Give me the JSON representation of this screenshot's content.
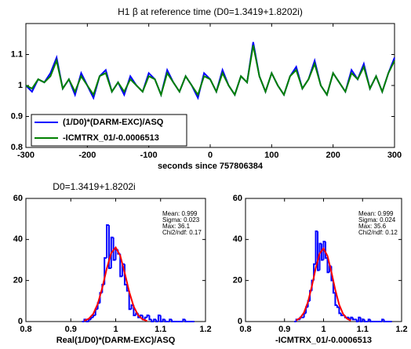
{
  "chart_data": [
    {
      "type": "line",
      "title": "H1 β at reference time (D0=1.3419+1.8202i)",
      "x_label": "seconds since 757806384",
      "x": [
        -300,
        -290,
        -280,
        -270,
        -260,
        -250,
        -240,
        -230,
        -220,
        -210,
        -200,
        -190,
        -180,
        -170,
        -160,
        -150,
        -140,
        -130,
        -120,
        -110,
        -100,
        -90,
        -80,
        -70,
        -60,
        -50,
        -40,
        -30,
        -20,
        -10,
        0,
        10,
        20,
        30,
        40,
        50,
        60,
        70,
        80,
        90,
        100,
        110,
        120,
        130,
        140,
        150,
        160,
        170,
        180,
        190,
        200,
        210,
        220,
        230,
        240,
        250,
        260,
        270,
        280,
        290,
        300
      ],
      "series": [
        {
          "name": "(1/D0)*(DARM-EXC)/ASQ",
          "color": "#0000ff",
          "values": [
            1.0,
            0.98,
            1.02,
            1.01,
            1.04,
            1.09,
            0.99,
            1.02,
            0.97,
            1.04,
            1.0,
            0.96,
            1.03,
            1.05,
            0.98,
            1.01,
            0.97,
            1.03,
            1.0,
            0.98,
            1.04,
            1.02,
            0.97,
            1.05,
            1.01,
            0.98,
            1.03,
            1.0,
            0.96,
            1.04,
            1.02,
            0.98,
            1.05,
            1.0,
            0.97,
            1.03,
            1.01,
            1.14,
            1.03,
            0.98,
            1.04,
            1.0,
            0.97,
            1.03,
            1.06,
            0.99,
            1.02,
            1.08,
            1.0,
            0.97,
            1.04,
            1.01,
            0.98,
            1.05,
            1.02,
            1.07,
            0.99,
            1.03,
            0.98,
            1.04,
            1.09
          ]
        },
        {
          "name": "-ICMTRX_01/-0.0006513",
          "color": "#008000",
          "values": [
            1.0,
            0.99,
            1.02,
            1.01,
            1.03,
            1.08,
            0.99,
            1.02,
            0.98,
            1.03,
            1.0,
            0.97,
            1.03,
            1.04,
            0.98,
            1.01,
            0.98,
            1.02,
            1.0,
            0.98,
            1.03,
            1.02,
            0.97,
            1.04,
            1.01,
            0.98,
            1.03,
            1.0,
            0.97,
            1.03,
            1.02,
            0.98,
            1.04,
            1.0,
            0.97,
            1.03,
            1.01,
            1.13,
            1.03,
            0.98,
            1.04,
            1.0,
            0.97,
            1.03,
            1.05,
            0.99,
            1.02,
            1.07,
            1.0,
            0.97,
            1.04,
            1.01,
            0.98,
            1.04,
            1.02,
            1.06,
            0.99,
            1.03,
            0.98,
            1.04,
            1.08
          ]
        }
      ],
      "xlim": [
        -300,
        300
      ],
      "xticks": [
        -300,
        -200,
        -100,
        0,
        100,
        200,
        300
      ],
      "ylim": [
        0.8,
        1.2
      ],
      "yticks": [
        0.8,
        0.9,
        1,
        1.1
      ],
      "legend": "lower left"
    },
    {
      "type": "histogram",
      "title": "D0=1.3419+1.8202i",
      "x_label": "Real(1/D0)*(DARM-EXC)/ASQ",
      "color": "#0000ff",
      "bins": [
        0.925,
        0.93,
        0.935,
        0.94,
        0.945,
        0.95,
        0.955,
        0.96,
        0.965,
        0.97,
        0.975,
        0.98,
        0.985,
        0.99,
        0.995,
        1.0,
        1.005,
        1.01,
        1.015,
        1.02,
        1.025,
        1.03,
        1.035,
        1.04,
        1.045,
        1.05,
        1.055,
        1.06,
        1.065,
        1.07,
        1.075,
        1.08,
        1.085,
        1.09,
        1.095,
        1.1,
        1.105,
        1.11,
        1.115,
        1.12,
        1.125,
        1.13,
        1.135,
        1.14,
        1.145,
        1.15,
        1.155,
        1.16,
        1.165,
        1.17,
        1.175
      ],
      "values": [
        0,
        1,
        0,
        1,
        2,
        3,
        6,
        9,
        14,
        18,
        31,
        47,
        26,
        41,
        30,
        35,
        33,
        22,
        28,
        18,
        15,
        6,
        8,
        3,
        4,
        2,
        3,
        1,
        2,
        3,
        1,
        0,
        1,
        0,
        3,
        0,
        1,
        0,
        0,
        1,
        0,
        0,
        0,
        0,
        0,
        1,
        0,
        0,
        0,
        0
      ],
      "fit": {
        "color": "#ff0000",
        "x": [
          0.93,
          0.94,
          0.95,
          0.96,
          0.97,
          0.98,
          0.99,
          1.0,
          1.01,
          1.02,
          1.03,
          1.04,
          1.05,
          1.06,
          1.07
        ],
        "y": [
          0.4,
          1.35,
          3.73,
          8.57,
          16.3,
          25.7,
          33.4,
          36.1,
          32.2,
          23.8,
          14.6,
          7.37,
          3.09,
          1.07,
          0.31
        ]
      },
      "annotations": [
        "Mean: 0.999",
        "Sigma: 0.023",
        "Max: 36.1",
        "Chi2/ndf: 0.17"
      ],
      "xlim": [
        0.8,
        1.2
      ],
      "xticks": [
        0.8,
        0.9,
        1,
        1.1,
        1.2
      ],
      "ylim": [
        0,
        60
      ],
      "yticks": [
        0,
        20,
        40,
        60
      ]
    },
    {
      "type": "histogram",
      "x_label": "-ICMTRX_01/-0.0006513",
      "color": "#0000ff",
      "bins": [
        0.925,
        0.93,
        0.935,
        0.94,
        0.945,
        0.95,
        0.955,
        0.96,
        0.965,
        0.97,
        0.975,
        0.98,
        0.985,
        0.99,
        0.995,
        1.0,
        1.005,
        1.01,
        1.015,
        1.02,
        1.025,
        1.03,
        1.035,
        1.04,
        1.045,
        1.05,
        1.055,
        1.06,
        1.065,
        1.07,
        1.075,
        1.08,
        1.085,
        1.09,
        1.095,
        1.1,
        1.105,
        1.11,
        1.115,
        1.12,
        1.125,
        1.13,
        1.135,
        1.14,
        1.145,
        1.15,
        1.155,
        1.16,
        1.165,
        1.17,
        1.175
      ],
      "values": [
        0,
        1,
        1,
        2,
        2,
        4,
        7,
        10,
        15,
        20,
        28,
        44,
        25,
        38,
        30,
        39,
        31,
        24,
        27,
        20,
        14,
        8,
        7,
        4,
        3,
        3,
        2,
        2,
        1,
        2,
        1,
        1,
        0,
        2,
        0,
        1,
        0,
        0,
        1,
        0,
        0,
        0,
        0,
        0,
        0,
        1,
        0,
        0,
        0,
        0
      ],
      "fit": {
        "color": "#ff0000",
        "x": [
          0.93,
          0.94,
          0.95,
          0.96,
          0.97,
          0.98,
          0.99,
          1.0,
          1.01,
          1.02,
          1.03,
          1.04,
          1.05,
          1.06,
          1.07
        ],
        "y": [
          0.57,
          1.74,
          4.43,
          9.5,
          17.2,
          26.0,
          33.2,
          35.6,
          32.0,
          24.3,
          15.5,
          8.27,
          3.72,
          1.41,
          0.45
        ]
      },
      "annotations": [
        "Mean: 0.999",
        "Sigma: 0.024",
        "Max: 35.6",
        "Chi2/ndf: 0.12"
      ],
      "xlim": [
        0.8,
        1.2
      ],
      "xticks": [
        0.8,
        0.9,
        1,
        1.1,
        1.2
      ],
      "ylim": [
        0,
        60
      ],
      "yticks": [
        0,
        20,
        40,
        60
      ]
    }
  ]
}
